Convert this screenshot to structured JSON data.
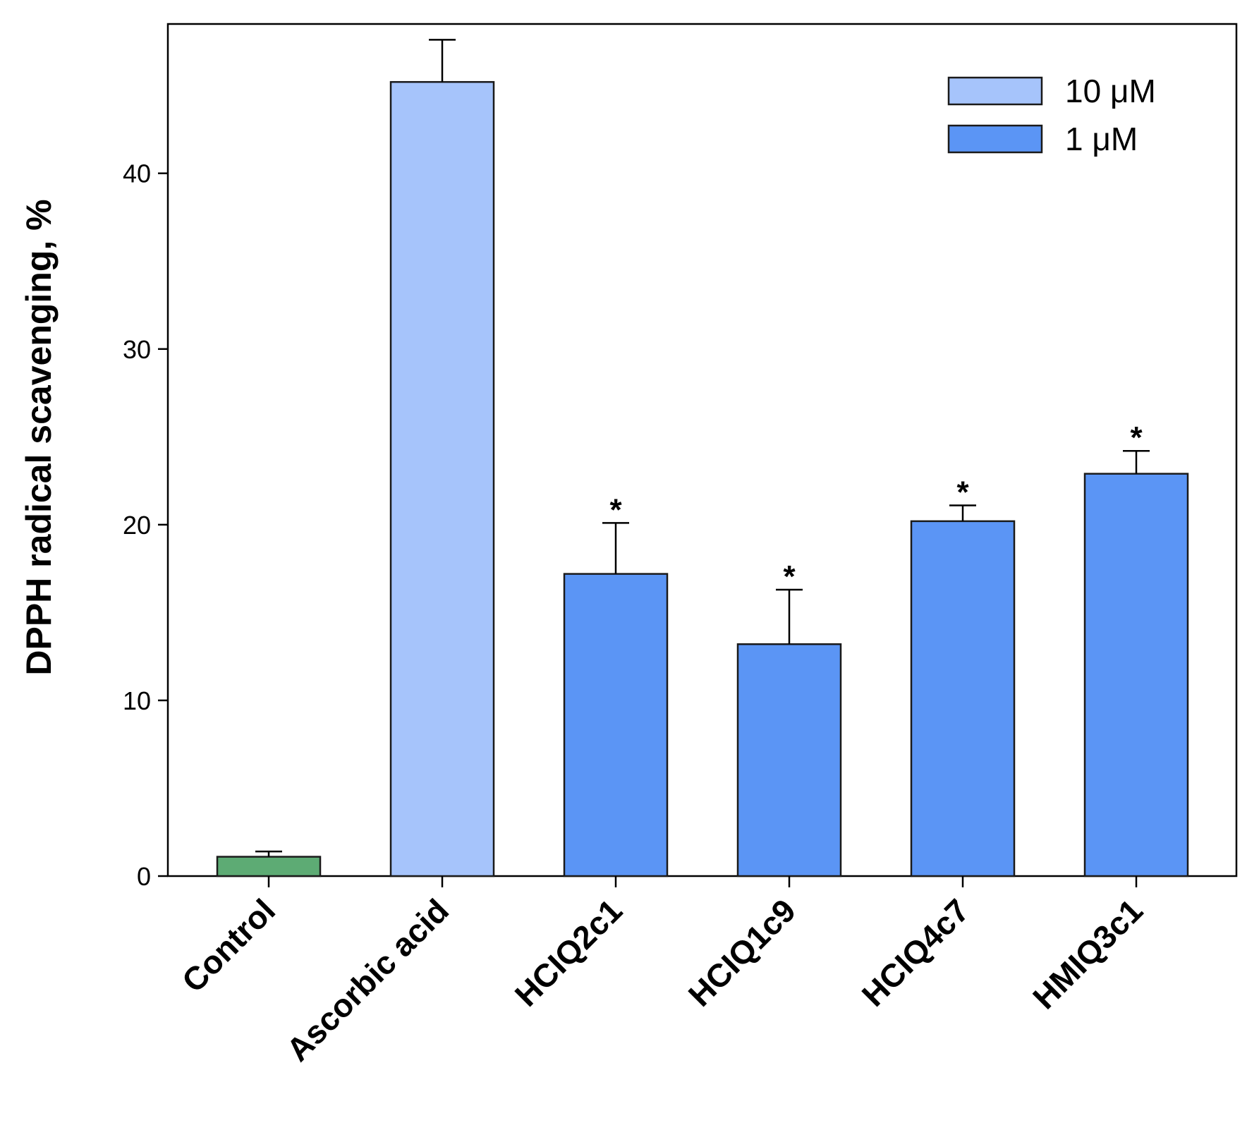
{
  "chart_data": {
    "type": "bar",
    "title": "",
    "xlabel": "",
    "ylabel": "DPPH radical scavenging, %",
    "ylim": [
      0,
      48.5
    ],
    "yticks": [
      "0",
      "10",
      "20",
      "30",
      "40"
    ],
    "grid": false,
    "legend_position": "top-right",
    "categories": [
      "Control",
      "Ascorbic acid",
      "HCIQ2c1",
      "HCIQ1c9",
      "HCIQ4c7",
      "HMIQ3c1"
    ],
    "values": [
      1.1,
      45.2,
      17.2,
      13.2,
      20.2,
      22.9
    ],
    "errors": [
      0.3,
      2.4,
      2.9,
      3.1,
      0.9,
      1.3
    ],
    "series_index": [
      null,
      0,
      1,
      1,
      1,
      1
    ],
    "significance": [
      "",
      "",
      "*",
      "*",
      "*",
      "*"
    ],
    "series": [
      {
        "name": "10 μM",
        "color": "#a6c4fb"
      },
      {
        "name": "1 μM",
        "color": "#5b95f5"
      }
    ],
    "control_color": "#5dab74"
  }
}
